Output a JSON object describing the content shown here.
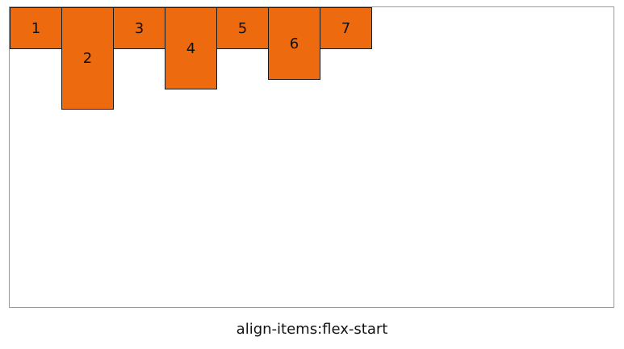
{
  "container": {
    "items": [
      {
        "label": "1"
      },
      {
        "label": "2"
      },
      {
        "label": "3"
      },
      {
        "label": "4"
      },
      {
        "label": "5"
      },
      {
        "label": "6"
      },
      {
        "label": "7"
      }
    ]
  },
  "caption": "align-items:flex-start",
  "colors": {
    "item_fill": "#ee6a0e",
    "item_border": "#1a1a1a",
    "container_border": "#9a9a9a"
  }
}
